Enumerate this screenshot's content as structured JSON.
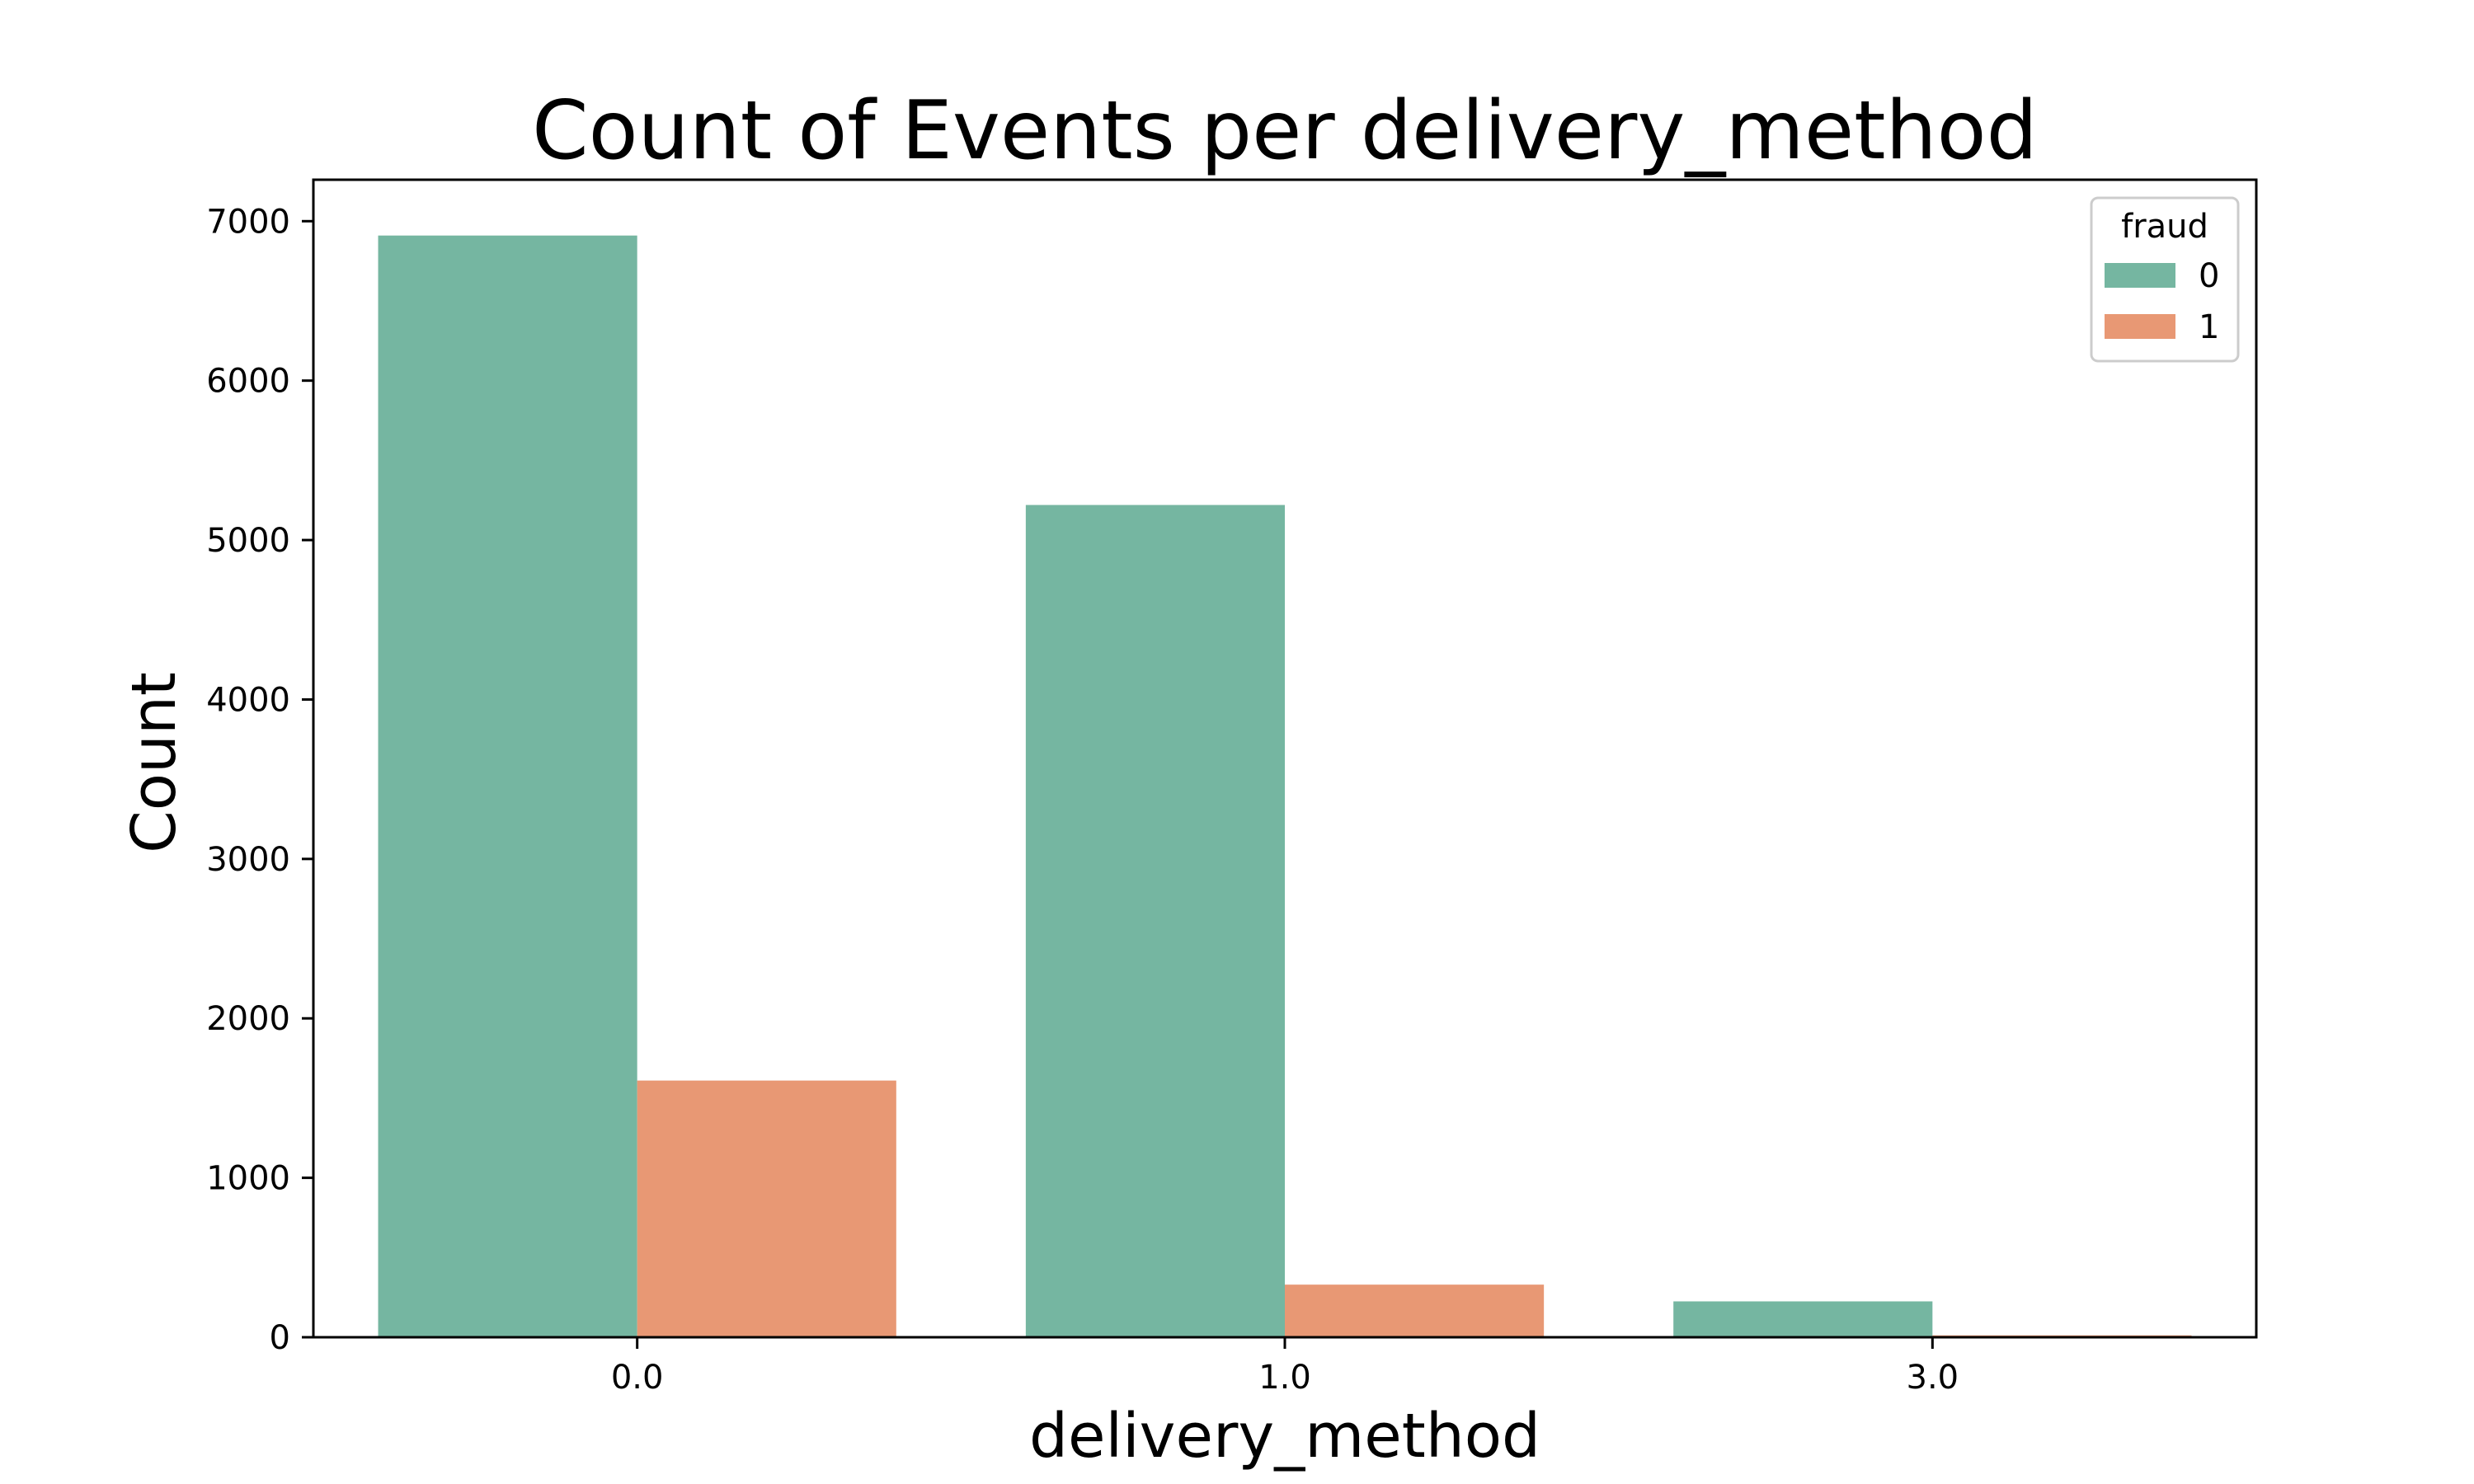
{
  "chart_data": {
    "type": "bar",
    "title": "Count of Events per delivery_method",
    "xlabel": "delivery_method",
    "ylabel": "Count",
    "categories": [
      "0.0",
      "1.0",
      "3.0"
    ],
    "series": [
      {
        "name": "0",
        "values": [
          6910,
          5220,
          225
        ],
        "color": "#75b6a1"
      },
      {
        "name": "1",
        "values": [
          1610,
          330,
          12
        ],
        "color": "#e89874"
      }
    ],
    "ylim": [
      0,
      7260
    ],
    "yticks": [
      0,
      1000,
      2000,
      3000,
      4000,
      5000,
      6000,
      7000
    ],
    "grid": false,
    "legend": {
      "title": "fraud",
      "placement": "top-right"
    }
  }
}
